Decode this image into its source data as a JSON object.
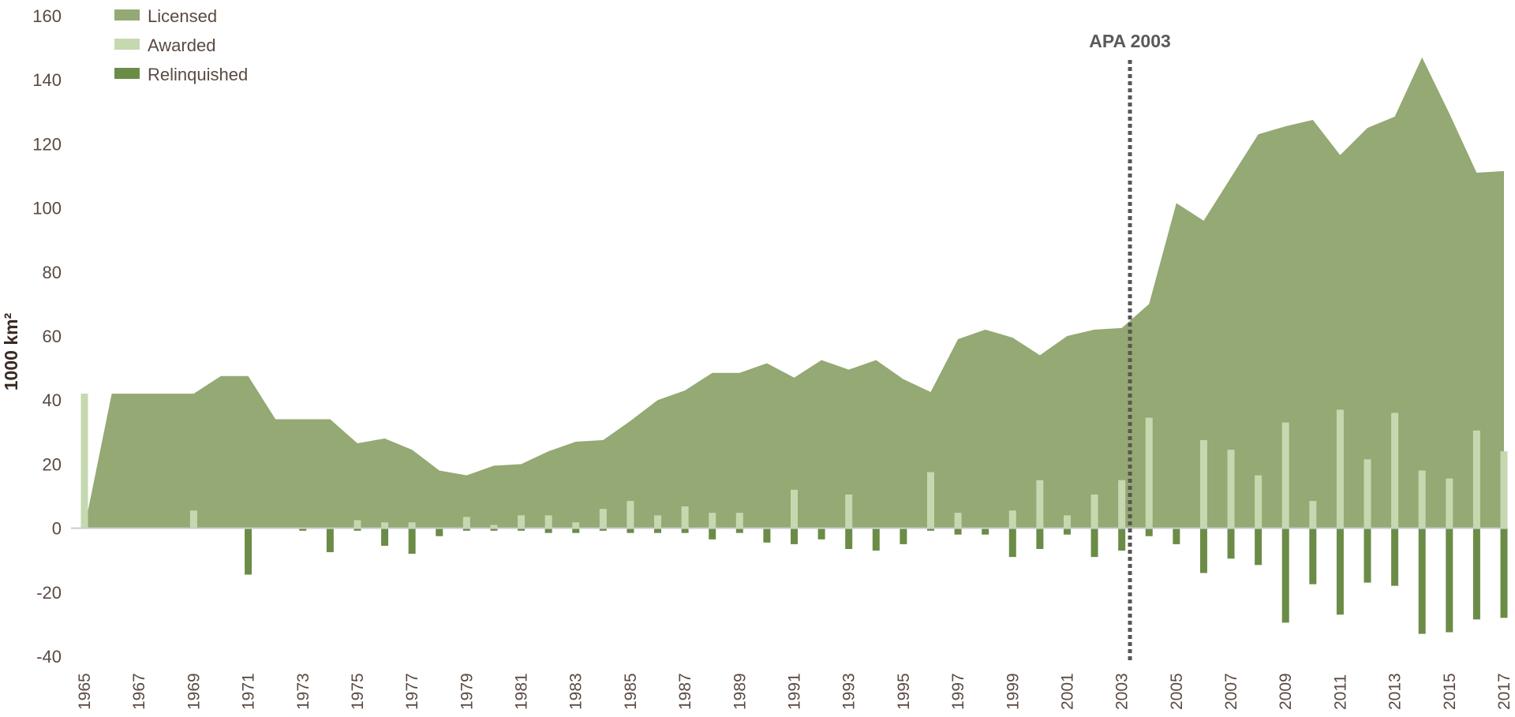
{
  "chart_data": {
    "type": "area",
    "ylabel": "1000 km²",
    "xlabel": "",
    "title": "",
    "ylim": [
      -40,
      160
    ],
    "yticks": [
      "160",
      "140",
      "120",
      "100",
      "80",
      "60",
      "40",
      "20",
      "0",
      "-20",
      "-40"
    ],
    "ytick_values": [
      160,
      140,
      120,
      100,
      80,
      60,
      40,
      20,
      0,
      -20,
      -40
    ],
    "xlim": [
      1965,
      2017
    ],
    "xtick_labels": [
      "1965",
      "1967",
      "1969",
      "1971",
      "1973",
      "1975",
      "1977",
      "1979",
      "1981",
      "1983",
      "1985",
      "1987",
      "1989",
      "1991",
      "1993",
      "1995",
      "1997",
      "1999",
      "2001",
      "2003",
      "2005",
      "2007",
      "2009",
      "2011",
      "2013",
      "2015",
      "2017"
    ],
    "grid": false,
    "legend_position": "top-left",
    "colors": {
      "licensed": "#94a973",
      "awarded": "#c6d8b0",
      "relinquished": "#6b8c47",
      "axis": "#cccccc",
      "annotation_line": "#5a5555",
      "text": "#5a4a42"
    },
    "series": [
      {
        "name": "Licensed",
        "kind": "area",
        "x": [
          1965,
          1966,
          1967,
          1968,
          1969,
          1970,
          1971,
          1972,
          1973,
          1974,
          1975,
          1976,
          1977,
          1978,
          1979,
          1980,
          1981,
          1982,
          1983,
          1984,
          1985,
          1986,
          1987,
          1988,
          1989,
          1990,
          1991,
          1992,
          1993,
          1994,
          1995,
          1996,
          1997,
          1998,
          1999,
          2000,
          2001,
          2002,
          2003,
          2004,
          2005,
          2006,
          2007,
          2008,
          2009,
          2010,
          2011,
          2012,
          2013,
          2014,
          2015,
          2016,
          2017
        ],
        "values": [
          0,
          42,
          42,
          42,
          42,
          47.5,
          47.5,
          34,
          34,
          34,
          26.5,
          28,
          24.5,
          18,
          16.5,
          19.5,
          20,
          24,
          27,
          27.5,
          33.5,
          40,
          43,
          48.5,
          48.5,
          51.5,
          47,
          52.5,
          49.5,
          52.5,
          46.5,
          42.5,
          59,
          62,
          59.5,
          54,
          60,
          62,
          62.5,
          70,
          101.5,
          96,
          109.5,
          123,
          125.5,
          127.5,
          116.5,
          125,
          128.5,
          147,
          129.5,
          111,
          111.5
        ]
      },
      {
        "name": "Awarded",
        "kind": "bar",
        "x": [
          1965,
          1969,
          1975,
          1976,
          1977,
          1979,
          1980,
          1981,
          1982,
          1983,
          1984,
          1985,
          1986,
          1987,
          1988,
          1989,
          1991,
          1993,
          1996,
          1997,
          1999,
          2000,
          2001,
          2002,
          2003,
          2004,
          2006,
          2007,
          2008,
          2009,
          2010,
          2011,
          2012,
          2013,
          2014,
          2015,
          2016,
          2017
        ],
        "values": [
          42,
          5.5,
          2.5,
          1.8,
          1.8,
          3.5,
          1,
          4,
          4,
          1.8,
          6,
          8.5,
          4,
          6.8,
          4.8,
          4.8,
          12,
          10.5,
          17.5,
          4.8,
          5.5,
          15,
          4,
          10.5,
          15,
          34.5,
          27.5,
          24.5,
          16.5,
          33,
          8.5,
          37,
          21.5,
          36,
          18,
          15.5,
          30.5,
          24
        ]
      },
      {
        "name": "Relinquished",
        "kind": "bar",
        "x": [
          1971,
          1973,
          1974,
          1975,
          1976,
          1977,
          1978,
          1979,
          1980,
          1981,
          1982,
          1983,
          1984,
          1985,
          1986,
          1987,
          1988,
          1989,
          1990,
          1991,
          1992,
          1993,
          1994,
          1995,
          1996,
          1997,
          1998,
          1999,
          2000,
          2001,
          2002,
          2003,
          2004,
          2005,
          2006,
          2007,
          2008,
          2009,
          2010,
          2011,
          2012,
          2013,
          2014,
          2015,
          2016,
          2017
        ],
        "values": [
          -14.5,
          -0.8,
          -7.5,
          -0.8,
          -5.5,
          -8,
          -2.5,
          -0.8,
          -0.8,
          -0.8,
          -1.5,
          -1.5,
          -0.8,
          -1.5,
          -1.5,
          -1.5,
          -3.5,
          -1.5,
          -4.5,
          -5,
          -3.5,
          -6.5,
          -7,
          -5,
          -0.8,
          -2,
          -2,
          -9,
          -6.5,
          -2,
          -9,
          -7,
          -2.5,
          -5,
          -14,
          -9.5,
          -11.5,
          -29.5,
          -17.5,
          -27,
          -17,
          -18,
          -33,
          -32.5,
          -28.5,
          -28
        ]
      }
    ],
    "annotations": [
      {
        "label": "APA 2003",
        "x": 2003.3,
        "style": "dotted-vertical-line"
      }
    ]
  }
}
